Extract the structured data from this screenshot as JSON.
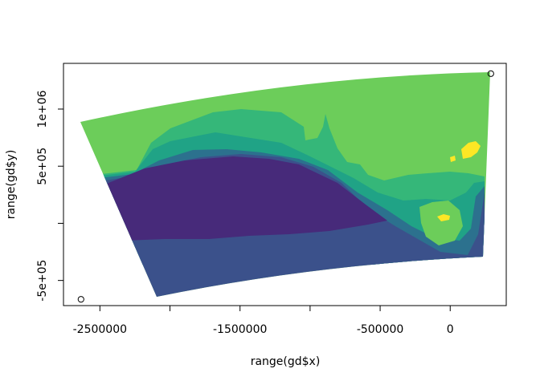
{
  "chart_data": {
    "type": "heatmap",
    "title": "",
    "xlabel": "range(gd$x)",
    "ylabel": "range(gd$y)",
    "xlim": [
      -2760000,
      400000
    ],
    "ylim": [
      -720000,
      1400000
    ],
    "x_ticks": [
      {
        "value": -2500000,
        "label": "-2500000"
      },
      {
        "value": -2000000,
        "label": ""
      },
      {
        "value": -1500000,
        "label": "-1500000"
      },
      {
        "value": -1000000,
        "label": ""
      },
      {
        "value": -500000,
        "label": "-500000"
      },
      {
        "value": 0,
        "label": "0"
      }
    ],
    "y_ticks": [
      {
        "value": -500000,
        "label": "-5e+05"
      },
      {
        "value": 0,
        "label": ""
      },
      {
        "value": 500000,
        "label": "5e+05"
      },
      {
        "value": 1000000,
        "label": "1e+06"
      }
    ],
    "points": [
      {
        "x": -2635000,
        "y": -665000
      },
      {
        "x": 290000,
        "y": 1310000
      }
    ],
    "grid": false,
    "colors": {
      "level_1": "#472a7a",
      "level_2": "#3b518b",
      "level_3": "#2c718e",
      "level_4": "#20a386",
      "level_5": "#35b779",
      "level_6": "#6ccd5a",
      "level_7": "#fde725"
    }
  }
}
